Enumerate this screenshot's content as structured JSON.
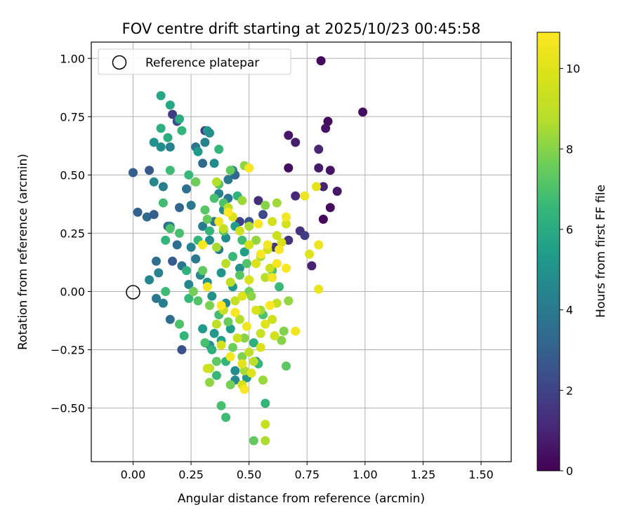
{
  "chart_data": {
    "type": "scatter",
    "title": "FOV centre drift starting at 2025/10/23 00:45:58",
    "xlabel": "Angular distance from reference (arcmin)",
    "ylabel": "Rotation from reference (arcmin)",
    "xlim": [
      -0.18,
      1.63
    ],
    "ylim": [
      -0.73,
      1.07
    ],
    "x_ticks": [
      0.0,
      0.25,
      0.5,
      0.75,
      1.0,
      1.25,
      1.5
    ],
    "x_tick_labels": [
      "0.00",
      "0.25",
      "0.50",
      "0.75",
      "1.00",
      "1.25",
      "1.50"
    ],
    "y_ticks": [
      -0.5,
      -0.25,
      0.0,
      0.25,
      0.5,
      0.75,
      1.0
    ],
    "y_tick_labels": [
      "−0.50",
      "−0.25",
      "0.00",
      "0.25",
      "0.50",
      "0.75",
      "1.00"
    ],
    "grid": true,
    "legend": {
      "location": "upper-left",
      "entries": [
        "Reference platepar"
      ]
    },
    "reference_point": {
      "x": 0.0,
      "y": 0.0
    },
    "colorbar": {
      "label": "Hours from first FF file",
      "colormap": "viridis",
      "range": [
        0,
        10.9
      ],
      "ticks": [
        0,
        2,
        4,
        6,
        8,
        10
      ],
      "tick_labels": [
        "0",
        "2",
        "4",
        "6",
        "8",
        "10"
      ]
    },
    "points": [
      [
        0.81,
        0.99,
        0.2
      ],
      [
        0.99,
        0.77,
        0.4
      ],
      [
        0.84,
        0.73,
        0.3
      ],
      [
        0.83,
        0.7,
        0.5
      ],
      [
        0.67,
        0.67,
        0.6
      ],
      [
        0.7,
        0.64,
        0.8
      ],
      [
        0.8,
        0.61,
        1.0
      ],
      [
        0.67,
        0.53,
        0.4
      ],
      [
        0.8,
        0.53,
        0.7
      ],
      [
        0.85,
        0.52,
        0.5
      ],
      [
        0.82,
        0.45,
        0.9
      ],
      [
        0.88,
        0.43,
        0.6
      ],
      [
        0.7,
        0.41,
        1.1
      ],
      [
        0.85,
        0.36,
        0.3
      ],
      [
        0.82,
        0.31,
        0.2
      ],
      [
        0.72,
        0.26,
        1.4
      ],
      [
        0.74,
        0.24,
        1.8
      ],
      [
        0.67,
        0.22,
        1.5
      ],
      [
        0.77,
        0.11,
        0.9
      ],
      [
        0.61,
        0.19,
        1.6
      ],
      [
        0.54,
        0.39,
        1.3
      ],
      [
        0.56,
        0.33,
        2.2
      ],
      [
        0.5,
        0.3,
        2.6
      ],
      [
        0.46,
        0.3,
        1.9
      ],
      [
        0.17,
        0.76,
        1.8
      ],
      [
        0.31,
        0.69,
        1.5
      ],
      [
        0.19,
        0.73,
        2.3
      ],
      [
        0.0,
        0.51,
        3.0
      ],
      [
        0.02,
        0.34,
        3.1
      ],
      [
        0.07,
        0.52,
        2.7
      ],
      [
        0.06,
        0.32,
        3.4
      ],
      [
        0.09,
        0.33,
        2.9
      ],
      [
        0.15,
        0.28,
        3.3
      ],
      [
        0.1,
        0.13,
        3.6
      ],
      [
        0.17,
        0.13,
        2.8
      ],
      [
        0.2,
        0.36,
        3.2
      ],
      [
        0.27,
        0.62,
        3.8
      ],
      [
        0.3,
        0.55,
        3.4
      ],
      [
        0.31,
        0.64,
        4.4
      ],
      [
        0.27,
        0.47,
        4.1
      ],
      [
        0.23,
        0.44,
        3.6
      ],
      [
        0.25,
        0.37,
        3.9
      ],
      [
        0.13,
        0.45,
        4.2
      ],
      [
        0.16,
        0.28,
        4.0
      ],
      [
        0.19,
        0.2,
        3.5
      ],
      [
        0.21,
        0.11,
        3.7
      ],
      [
        0.1,
        -0.03,
        3.9
      ],
      [
        0.13,
        -0.05,
        4.2
      ],
      [
        0.16,
        -0.12,
        3.5
      ],
      [
        0.21,
        -0.25,
        2.4
      ],
      [
        0.07,
        0.05,
        4.5
      ],
      [
        0.11,
        0.08,
        4.3
      ],
      [
        0.09,
        0.47,
        4.6
      ],
      [
        0.12,
        0.62,
        4.8
      ],
      [
        0.16,
        0.62,
        4.3
      ],
      [
        0.32,
        0.69,
        5.2
      ],
      [
        0.33,
        0.68,
        4.9
      ],
      [
        0.09,
        0.64,
        5.0
      ],
      [
        0.28,
        0.6,
        5.3
      ],
      [
        0.35,
        0.55,
        4.7
      ],
      [
        0.37,
        0.42,
        4.4
      ],
      [
        0.41,
        0.48,
        4.0
      ],
      [
        0.43,
        0.52,
        4.5
      ],
      [
        0.44,
        0.5,
        3.3
      ],
      [
        0.41,
        0.4,
        3.8
      ],
      [
        0.39,
        0.35,
        4.6
      ],
      [
        0.35,
        0.3,
        3.9
      ],
      [
        0.3,
        0.28,
        4.1
      ],
      [
        0.33,
        0.22,
        4.7
      ],
      [
        0.37,
        0.18,
        4.2
      ],
      [
        0.4,
        0.23,
        4.8
      ],
      [
        0.25,
        0.19,
        4.4
      ],
      [
        0.27,
        0.14,
        4.0
      ],
      [
        0.29,
        0.07,
        4.6
      ],
      [
        0.32,
        0.04,
        4.9
      ],
      [
        0.24,
        0.03,
        4.5
      ],
      [
        0.38,
        0.08,
        5.1
      ],
      [
        0.34,
        -0.02,
        5.0
      ],
      [
        0.4,
        -0.05,
        4.7
      ],
      [
        0.43,
        0.02,
        5.2
      ],
      [
        0.46,
        0.1,
        4.9
      ],
      [
        0.48,
        0.17,
        5.5
      ],
      [
        0.44,
        0.28,
        5.4
      ],
      [
        0.35,
        -0.18,
        5.2
      ],
      [
        0.38,
        -0.21,
        5.6
      ],
      [
        0.42,
        -0.16,
        5.4
      ],
      [
        0.33,
        -0.23,
        5.0
      ],
      [
        0.3,
        -0.16,
        5.3
      ],
      [
        0.44,
        -0.38,
        4.6
      ],
      [
        0.49,
        -0.37,
        5.3
      ],
      [
        0.53,
        -0.3,
        4.9
      ],
      [
        0.44,
        -0.34,
        4.8
      ],
      [
        0.12,
        0.84,
        5.8
      ],
      [
        0.16,
        0.8,
        5.9
      ],
      [
        0.2,
        0.74,
        6.0
      ],
      [
        0.12,
        0.7,
        6.2
      ],
      [
        0.21,
        0.69,
        6.4
      ],
      [
        0.15,
        0.66,
        6.1
      ],
      [
        0.37,
        0.61,
        6.5
      ],
      [
        0.16,
        0.52,
        6.7
      ],
      [
        0.24,
        0.5,
        6.6
      ],
      [
        0.13,
        0.38,
        6.8
      ],
      [
        0.16,
        0.27,
        7.0
      ],
      [
        0.14,
        0.22,
        6.4
      ],
      [
        0.2,
        0.25,
        6.9
      ],
      [
        0.23,
        0.09,
        6.3
      ],
      [
        0.24,
        -0.03,
        6.6
      ],
      [
        0.2,
        -0.14,
        7.0
      ],
      [
        0.22,
        -0.19,
        6.5
      ],
      [
        0.14,
        0.0,
        6.7
      ],
      [
        0.28,
        -0.04,
        7.1
      ],
      [
        0.31,
        -0.22,
        6.9
      ],
      [
        0.34,
        -0.25,
        6.2
      ],
      [
        0.37,
        -0.1,
        6.8
      ],
      [
        0.4,
        -0.3,
        6.4
      ],
      [
        0.36,
        -0.36,
        6.6
      ],
      [
        0.38,
        -0.49,
        6.9
      ],
      [
        0.4,
        -0.54,
        6.7
      ],
      [
        0.57,
        -0.48,
        6.4
      ],
      [
        0.52,
        -0.64,
        7.4
      ],
      [
        0.54,
        -0.31,
        6.5
      ],
      [
        0.52,
        -0.22,
        6.2
      ],
      [
        0.28,
        0.22,
        6.5
      ],
      [
        0.31,
        0.35,
        7.2
      ],
      [
        0.35,
        0.4,
        6.9
      ],
      [
        0.39,
        0.38,
        7.0
      ],
      [
        0.45,
        0.41,
        6.3
      ],
      [
        0.47,
        0.22,
        6.8
      ],
      [
        0.49,
        0.12,
        7.1
      ],
      [
        0.43,
        0.15,
        6.6
      ],
      [
        0.39,
        0.26,
        7.3
      ],
      [
        0.33,
        0.26,
        6.4
      ],
      [
        0.37,
        0.46,
        7.2
      ],
      [
        0.42,
        0.52,
        7.4
      ],
      [
        0.32,
        0.31,
        7.5
      ],
      [
        0.27,
        0.47,
        7.6
      ],
      [
        0.3,
        0.09,
        7.4
      ],
      [
        0.26,
        0.0,
        7.7
      ],
      [
        0.33,
        -0.06,
        7.8
      ],
      [
        0.41,
        -0.13,
        7.5
      ],
      [
        0.43,
        -0.24,
        7.6
      ],
      [
        0.47,
        -0.28,
        7.9
      ],
      [
        0.36,
        -0.3,
        7.3
      ],
      [
        0.42,
        -0.4,
        7.7
      ],
      [
        0.46,
        0.07,
        7.2
      ],
      [
        0.5,
        0.0,
        7.6
      ],
      [
        0.56,
        -0.1,
        7.0
      ],
      [
        0.6,
        0.09,
        6.9
      ],
      [
        0.63,
        0.02,
        6.6
      ],
      [
        0.66,
        -0.32,
        7.3
      ],
      [
        0.65,
        -0.17,
        7.9
      ],
      [
        0.64,
        -0.21,
        8.0
      ],
      [
        0.67,
        -0.04,
        8.2
      ],
      [
        0.62,
        0.38,
        8.4
      ],
      [
        0.57,
        0.37,
        8.0
      ],
      [
        0.48,
        0.54,
        8.1
      ],
      [
        0.47,
        0.39,
        8.3
      ],
      [
        0.5,
        0.28,
        8.6
      ],
      [
        0.53,
        0.22,
        8.2
      ],
      [
        0.55,
        0.15,
        8.5
      ],
      [
        0.57,
        0.06,
        8.8
      ],
      [
        0.51,
        -0.02,
        8.1
      ],
      [
        0.55,
        -0.08,
        8.4
      ],
      [
        0.46,
        -0.12,
        8.7
      ],
      [
        0.48,
        -0.2,
        8.0
      ],
      [
        0.52,
        -0.3,
        8.9
      ],
      [
        0.48,
        -0.34,
        8.5
      ],
      [
        0.56,
        -0.38,
        8.3
      ],
      [
        0.57,
        -0.57,
        9.2
      ],
      [
        0.57,
        -0.64,
        8.6
      ],
      [
        0.33,
        -0.33,
        8.8
      ],
      [
        0.33,
        -0.39,
        8.1
      ],
      [
        0.36,
        0.47,
        8.7
      ],
      [
        0.41,
        0.36,
        8.9
      ],
      [
        0.39,
        0.27,
        9.1
      ],
      [
        0.36,
        0.19,
        8.5
      ],
      [
        0.4,
        0.12,
        8.8
      ],
      [
        0.42,
        0.04,
        9.0
      ],
      [
        0.44,
        -0.04,
        9.2
      ],
      [
        0.39,
        -0.08,
        9.3
      ],
      [
        0.36,
        -0.14,
        9.0
      ],
      [
        0.45,
        -0.2,
        9.4
      ],
      [
        0.5,
        -0.26,
        9.1
      ],
      [
        0.55,
        -0.18,
        9.3
      ],
      [
        0.6,
        -0.12,
        9.5
      ],
      [
        0.62,
        -0.05,
        9.2
      ],
      [
        0.59,
        0.1,
        9.4
      ],
      [
        0.58,
        0.18,
        9.6
      ],
      [
        0.62,
        0.24,
        9.3
      ],
      [
        0.66,
        0.29,
        9.7
      ],
      [
        0.64,
        0.21,
        9.8
      ],
      [
        0.6,
        0.3,
        9.6
      ],
      [
        0.43,
        0.32,
        9.9
      ],
      [
        0.46,
        0.26,
        9.5
      ],
      [
        0.5,
        0.2,
        9.7
      ],
      [
        0.53,
        0.12,
        9.9
      ],
      [
        0.5,
        0.05,
        9.8
      ],
      [
        0.47,
        -0.02,
        10.0
      ],
      [
        0.53,
        -0.08,
        9.8
      ],
      [
        0.57,
        -0.14,
        10.0
      ],
      [
        0.61,
        -0.19,
        9.6
      ],
      [
        0.55,
        -0.24,
        9.9
      ],
      [
        0.47,
        -0.31,
        10.1
      ],
      [
        0.51,
        -0.35,
        10.0
      ],
      [
        0.47,
        -0.4,
        9.8
      ],
      [
        0.38,
        -0.23,
        9.7
      ],
      [
        0.32,
        -0.33,
        9.5
      ],
      [
        0.79,
        0.45,
        10.2
      ],
      [
        0.76,
        0.16,
        10.0
      ],
      [
        0.8,
        0.2,
        10.4
      ],
      [
        0.8,
        0.01,
        10.3
      ],
      [
        0.7,
        -0.17,
        10.5
      ],
      [
        0.66,
        0.32,
        10.6
      ],
      [
        0.63,
        0.18,
        10.7
      ],
      [
        0.66,
        0.1,
        10.8
      ],
      [
        0.6,
        0.06,
        10.5
      ],
      [
        0.58,
        0.2,
        10.6
      ],
      [
        0.54,
        0.29,
        10.8
      ],
      [
        0.5,
        0.53,
        10.7
      ],
      [
        0.41,
        0.34,
        10.9
      ],
      [
        0.37,
        0.3,
        10.4
      ],
      [
        0.3,
        0.2,
        10.8
      ],
      [
        0.32,
        0.02,
        10.6
      ],
      [
        0.38,
        -0.06,
        10.9
      ],
      [
        0.44,
        -0.09,
        10.7
      ],
      [
        0.49,
        -0.15,
        10.5
      ],
      [
        0.42,
        -0.28,
        10.6
      ],
      [
        0.48,
        -0.42,
        10.8
      ],
      [
        0.59,
        -0.06,
        10.9
      ],
      [
        0.62,
        0.12,
        10.7
      ],
      [
        0.74,
        0.41,
        10.5
      ],
      [
        0.55,
        0.16,
        10.8
      ]
    ]
  }
}
